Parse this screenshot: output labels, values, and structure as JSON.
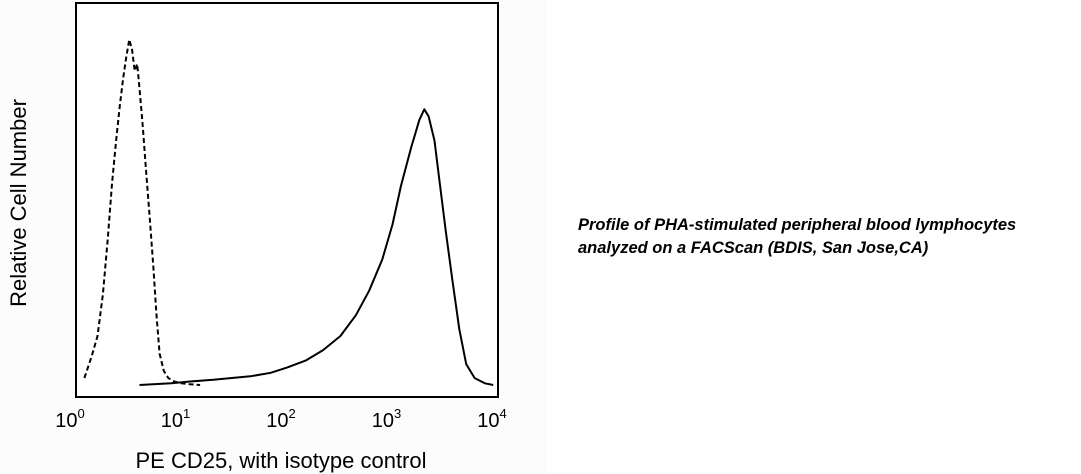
{
  "caption": {
    "line1": "Profile of PHA-stimulated peripheral blood lymphocytes",
    "line2": "analyzed on a FACScan (BDIS, San Jose,CA)"
  },
  "chart_data": {
    "type": "line",
    "title": "",
    "xlabel": "PE CD25, with isotype control",
    "ylabel": "Relative Cell Number",
    "x_scale": "log",
    "xlim": [
      1,
      10000
    ],
    "ylim": [
      0,
      100
    ],
    "x_ticks": [
      {
        "base": "10",
        "exp": "0"
      },
      {
        "base": "10",
        "exp": "1"
      },
      {
        "base": "10",
        "exp": "2"
      },
      {
        "base": "10",
        "exp": "3"
      },
      {
        "base": "10",
        "exp": "4"
      }
    ],
    "grid": false,
    "series": [
      {
        "style": "dashed",
        "color": "#000000",
        "x": [
          1.2,
          1.4,
          1.6,
          1.8,
          2.0,
          2.2,
          2.4,
          2.6,
          2.8,
          3.0,
          3.2,
          3.4,
          3.6,
          3.8,
          4.0,
          4.3,
          4.6,
          5.0,
          5.4,
          5.8,
          6.2,
          6.8,
          7.5,
          8.5,
          10,
          12,
          15
        ],
        "y": [
          2,
          8,
          14,
          26,
          42,
          58,
          70,
          80,
          88,
          94,
          99,
          96,
          90,
          92,
          85,
          74,
          62,
          48,
          34,
          20,
          9,
          4,
          2,
          1,
          0.5,
          0.2,
          0
        ]
      },
      {
        "style": "solid",
        "color": "#000000",
        "x": [
          4,
          8,
          12,
          20,
          30,
          45,
          70,
          100,
          150,
          220,
          320,
          450,
          600,
          800,
          1000,
          1200,
          1500,
          1800,
          2000,
          2200,
          2500,
          2800,
          3200,
          3700,
          4300,
          5000,
          6000,
          7500,
          9000
        ],
        "y": [
          0,
          0.5,
          1,
          1.5,
          2,
          2.5,
          3.5,
          5,
          7,
          10,
          14,
          20,
          27,
          36,
          46,
          57,
          68,
          76,
          79,
          77,
          70,
          58,
          44,
          30,
          16,
          6,
          2,
          0.5,
          0
        ]
      }
    ]
  }
}
